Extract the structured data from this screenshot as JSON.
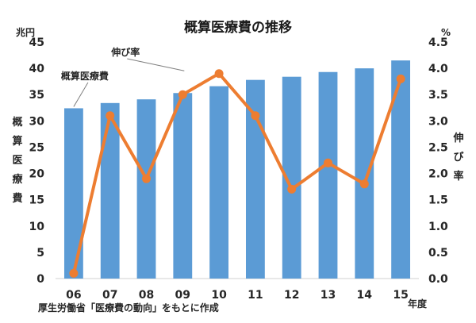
{
  "chart_data": {
    "type": "bar+line",
    "title": "概算医療費の推移",
    "categories": [
      "06",
      "07",
      "08",
      "09",
      "10",
      "11",
      "12",
      "13",
      "14",
      "15"
    ],
    "series": [
      {
        "name": "概算医療費",
        "type": "bar",
        "axis": "left",
        "color": "#5B9BD5",
        "values": [
          32.4,
          33.4,
          34.1,
          35.3,
          36.6,
          37.8,
          38.4,
          39.3,
          40.0,
          41.5
        ]
      },
      {
        "name": "伸び率",
        "type": "line",
        "axis": "right",
        "color": "#ED7D31",
        "values": [
          0.1,
          3.1,
          1.9,
          3.5,
          3.9,
          3.1,
          1.7,
          2.2,
          1.8,
          3.8
        ]
      }
    ],
    "y_left": {
      "unit": "兆円",
      "label": [
        "概",
        "算",
        "医",
        "療",
        "費"
      ],
      "ticks": [
        "0",
        "5",
        "10",
        "15",
        "20",
        "25",
        "30",
        "35",
        "40",
        "45"
      ],
      "range": [
        0,
        45
      ]
    },
    "y_right": {
      "unit": "%",
      "label": [
        "伸",
        "び",
        "率"
      ],
      "ticks": [
        "0.0",
        "0.5",
        "1.0",
        "1.5",
        "2.0",
        "2.5",
        "3.0",
        "3.5",
        "4.0",
        "4.5"
      ],
      "range": [
        0,
        4.5
      ]
    },
    "x_unit": "年度",
    "grid": false,
    "source_note": "厚生労働省「医療費の動向」をもとに作成",
    "annotations": {
      "bar_callout": "概算医療費",
      "line_callout": "伸び率"
    }
  }
}
